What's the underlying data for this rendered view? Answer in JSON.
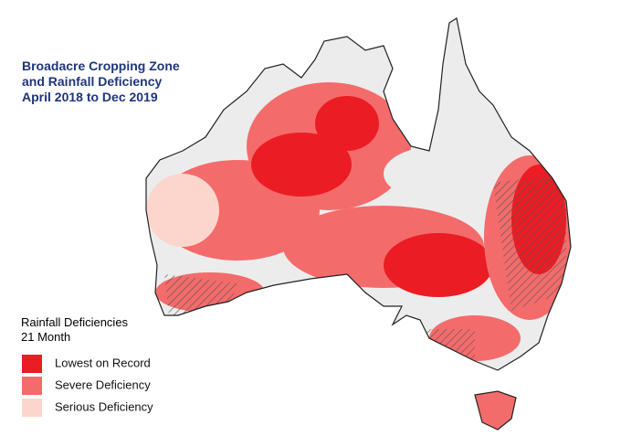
{
  "title": [
    "Broadacre Cropping Zone",
    "and Rainfall Deficiency",
    "April 2018 to Dec 2019"
  ],
  "legend": {
    "title": [
      "Rainfall Deficiencies",
      "21 Month"
    ],
    "items": [
      {
        "label": "Lowest on Record",
        "color": "#ec1c24"
      },
      {
        "label": "Severe Deficiency",
        "color": "#f46b6b"
      },
      {
        "label": "Serious Deficiency",
        "color": "#fcd6cc"
      }
    ]
  }
}
